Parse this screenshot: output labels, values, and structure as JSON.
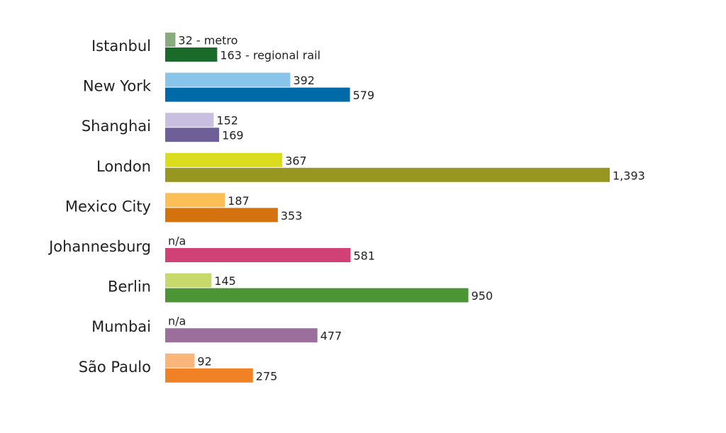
{
  "chart_data": {
    "type": "bar",
    "orientation": "horizontal",
    "categories": [
      "Istanbul",
      "New York",
      "Shanghai",
      "London",
      "Mexico City",
      "Johannesburg",
      "Berlin",
      "Mumbai",
      "São Paulo"
    ],
    "series": [
      {
        "colors": [
          "#8aab7e",
          "#89c4ea",
          "#c9bfe0",
          "#dcdc1e",
          "#fcbf56",
          null,
          "#c8d96c",
          null,
          "#f9b57a"
        ],
        "values": [
          32,
          392,
          152,
          367,
          187,
          null,
          145,
          null,
          92
        ],
        "value_labels": [
          "32 - metro",
          "392",
          "152",
          "367",
          "187",
          "n/a",
          "145",
          "n/a",
          "92"
        ]
      },
      {
        "colors": [
          "#1a6a2a",
          "#0069a8",
          "#6e5f98",
          "#979621",
          "#d4720f",
          "#d04275",
          "#4c9535",
          "#9b6e9c",
          "#f18125"
        ],
        "values": [
          163,
          579,
          169,
          1393,
          353,
          581,
          950,
          477,
          275
        ],
        "value_labels": [
          "163 - regional rail",
          "579",
          "169",
          "1,393",
          "353",
          "581",
          "950",
          "477",
          "275"
        ]
      }
    ]
  }
}
